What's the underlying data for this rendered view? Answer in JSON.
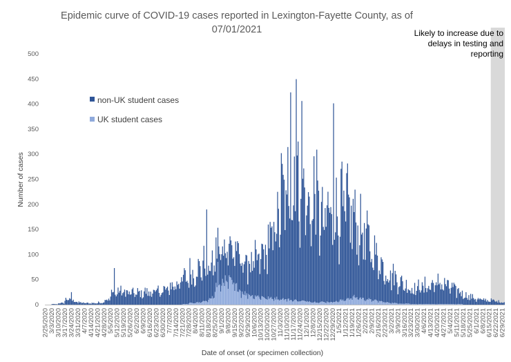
{
  "chart_data": {
    "type": "bar",
    "stacked": true,
    "title_lines": [
      "Epidemic curve of COVID-19 cases reported in Lexington-Fayette County, as of",
      "07/01/2021"
    ],
    "xlabel": "Date of onset (or specimen collection)",
    "ylabel": "Number of cases",
    "ylim": [
      0,
      500
    ],
    "yticks": [
      0,
      50,
      100,
      150,
      200,
      250,
      300,
      350,
      400,
      450,
      500
    ],
    "x_tick_labels": [
      "2/25/2020",
      "3/3/2020",
      "3/10/2020",
      "3/17/2020",
      "3/24/2020",
      "3/31/2020",
      "4/7/2020",
      "4/14/2020",
      "4/21/2020",
      "4/28/2020",
      "5/5/2020",
      "5/12/2020",
      "5/19/2020",
      "5/26/2020",
      "6/2/2020",
      "6/9/2020",
      "6/16/2020",
      "6/23/2020",
      "6/30/2020",
      "7/7/2020",
      "7/14/2020",
      "7/21/2020",
      "7/28/2020",
      "8/4/2020",
      "8/11/2020",
      "8/18/2020",
      "8/25/2020",
      "9/1/2020",
      "9/8/2020",
      "9/15/2020",
      "9/22/2020",
      "9/29/2020",
      "10/6/2020",
      "10/13/2020",
      "10/20/2020",
      "10/27/2020",
      "11/3/2020",
      "11/10/2020",
      "11/17/2020",
      "11/24/2020",
      "12/1/2020",
      "12/8/2020",
      "12/15/2020",
      "12/22/2020",
      "12/29/2020",
      "1/5/2021",
      "1/12/2021",
      "1/19/2021",
      "1/26/2021",
      "2/2/2021",
      "2/9/2021",
      "2/16/2021",
      "2/23/2021",
      "3/2/2021",
      "3/9/2021",
      "3/16/2021",
      "3/23/2021",
      "3/30/2021",
      "4/6/2021",
      "4/13/2021",
      "4/20/2021",
      "4/27/2021",
      "5/4/2021",
      "5/11/2021",
      "5/18/2021",
      "5/25/2021",
      "6/1/2021",
      "6/8/2021",
      "6/15/2021",
      "6/22/2021",
      "6/29/2021"
    ],
    "series": [
      {
        "name": "non-UK student cases",
        "color": "#2F5597",
        "weekly_daily_avg": [
          0,
          1,
          3,
          10,
          7,
          4,
          3,
          3,
          4,
          10,
          20,
          26,
          24,
          22,
          22,
          24,
          24,
          26,
          28,
          36,
          45,
          50,
          58,
          66,
          72,
          62,
          62,
          70,
          62,
          68,
          62,
          62,
          68,
          84,
          110,
          152,
          195,
          215,
          250,
          225,
          175,
          205,
          155,
          170,
          180,
          165,
          170,
          148,
          130,
          112,
          92,
          75,
          58,
          52,
          42,
          34,
          30,
          34,
          34,
          38,
          40,
          36,
          30,
          24,
          18,
          14,
          10,
          9,
          8,
          6,
          5
        ],
        "peaks": [
          {
            "x": "2020-03-24",
            "y": 25
          },
          {
            "x": "2020-05-09",
            "y": 73
          },
          {
            "x": "2020-08-16",
            "y": 183
          },
          {
            "x": "2020-11-14",
            "y": 414
          },
          {
            "x": "2020-11-20",
            "y": 440
          },
          {
            "x": "2020-11-26",
            "y": 398
          },
          {
            "x": "2020-12-30",
            "y": 396
          },
          {
            "x": "2021-01-08",
            "y": 277
          }
        ]
      },
      {
        "name": "UK student cases",
        "color": "#8FAADC",
        "weekly_daily_avg": [
          0,
          0,
          0,
          0,
          0,
          0,
          0,
          0,
          0,
          0,
          0,
          0,
          0,
          0,
          0,
          0,
          0,
          0,
          0,
          0,
          0,
          1,
          3,
          4,
          6,
          14,
          35,
          45,
          42,
          32,
          22,
          18,
          16,
          14,
          12,
          12,
          11,
          9,
          8,
          7,
          6,
          5,
          5,
          5,
          6,
          8,
          12,
          14,
          12,
          10,
          8,
          6,
          4,
          3,
          2,
          2,
          1,
          1,
          1,
          1,
          1,
          1,
          1,
          1,
          0,
          0,
          0,
          0,
          0,
          0,
          0
        ],
        "peaks": [
          {
            "x": "2020-08-28",
            "y": 85
          }
        ]
      }
    ],
    "annotation": {
      "lines": [
        "Likely to increase due to",
        "delays in testing and",
        "reporting"
      ],
      "shaded_from": "2021-06-17",
      "shaded_to": "2021-07-01",
      "color": "#D9D9D9"
    },
    "legend_position": "upper-left",
    "grid": false
  }
}
